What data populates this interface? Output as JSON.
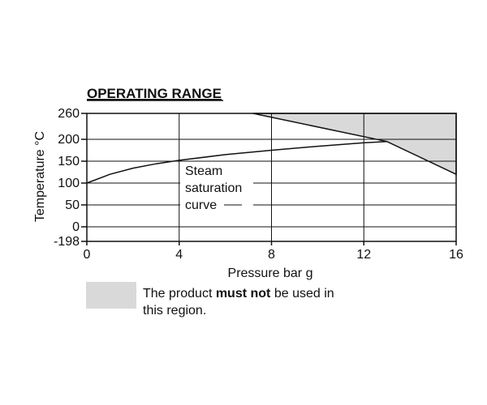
{
  "chart_data": {
    "type": "line",
    "title": "OPERATING RANGE",
    "xlabel": "Pressure bar g",
    "ylabel": "Temperature °C",
    "x_ticks": [
      "0",
      "4",
      "8",
      "12",
      "16"
    ],
    "y_ticks": [
      "260",
      "200",
      "150",
      "100",
      "50",
      "0",
      "-198"
    ],
    "xlim": [
      0,
      16
    ],
    "y_tick_values": [
      260,
      200,
      150,
      100,
      50,
      0,
      -198
    ],
    "grid": true,
    "series": [
      {
        "name": "Steam saturation curve",
        "x": [
          0,
          1,
          2,
          3,
          4,
          6,
          8,
          10,
          12,
          13
        ],
        "y": [
          100,
          120,
          134,
          144,
          152,
          165,
          175,
          184,
          192,
          195
        ]
      }
    ],
    "shaded_region": {
      "boundary": [
        {
          "x": 7.2,
          "y": 260
        },
        {
          "x": 13,
          "y": 195
        },
        {
          "x": 16,
          "y": 120
        },
        {
          "x": 16,
          "y": 260
        }
      ]
    },
    "annotations": [
      "Steam",
      "saturation",
      "curve"
    ]
  },
  "legend": {
    "text_before": "The product ",
    "text_bold": "must not",
    "text_after": " be used in this region."
  }
}
